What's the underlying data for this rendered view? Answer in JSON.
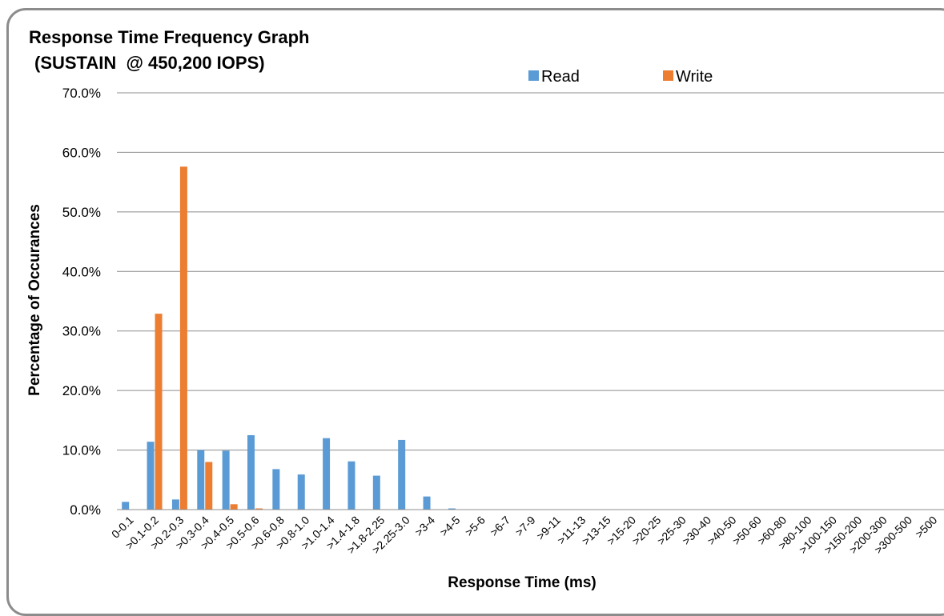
{
  "chart_data": {
    "type": "bar",
    "title": "Response Time Frequency Graph",
    "subtitle": "(SUSTAIN  @ 450,200 IOPS)",
    "xlabel": "Response Time (ms)",
    "ylabel": "Percentage of Occurances",
    "ylim": [
      0,
      70
    ],
    "y_ticks": [
      "0.0%",
      "10.0%",
      "20.0%",
      "30.0%",
      "40.0%",
      "50.0%",
      "60.0%",
      "70.0%"
    ],
    "grid": true,
    "legend_position": "top",
    "categories": [
      "0-0.1",
      ">0.1-0.2",
      ">0.2-0.3",
      ">0.3-0.4",
      ">0.4-0.5",
      ">0.5-0.6",
      ">0.6-0.8",
      ">0.8-1.0",
      ">1.0-1.4",
      ">1.4-1.8",
      ">1.8-2.25",
      ">2.25-3.0",
      ">3-4",
      ">4-5",
      ">5-6",
      ">6-7",
      ">7-9",
      ">9-11",
      ">11-13",
      ">13-15",
      ">15-20",
      ">20-25",
      ">25-30",
      ">30-40",
      ">40-50",
      ">50-60",
      ">60-80",
      ">80-100",
      ">100-150",
      ">150-200",
      ">200-300",
      ">300-500",
      ">500"
    ],
    "series": [
      {
        "name": "Read",
        "color": "#5b9bd5",
        "values": [
          1.3,
          11.4,
          1.7,
          10.0,
          9.9,
          12.5,
          6.8,
          5.9,
          12.0,
          8.1,
          5.7,
          11.7,
          2.2,
          0.2,
          0,
          0,
          0,
          0,
          0,
          0,
          0,
          0,
          0,
          0,
          0,
          0,
          0,
          0,
          0,
          0,
          0,
          0,
          0
        ]
      },
      {
        "name": "Write",
        "color": "#ed7d31",
        "values": [
          0,
          32.9,
          57.6,
          8.0,
          0.9,
          0.2,
          0,
          0,
          0,
          0,
          0,
          0,
          0,
          0,
          0,
          0,
          0,
          0,
          0,
          0,
          0,
          0,
          0,
          0,
          0,
          0,
          0,
          0,
          0,
          0,
          0,
          0,
          0
        ]
      }
    ]
  }
}
